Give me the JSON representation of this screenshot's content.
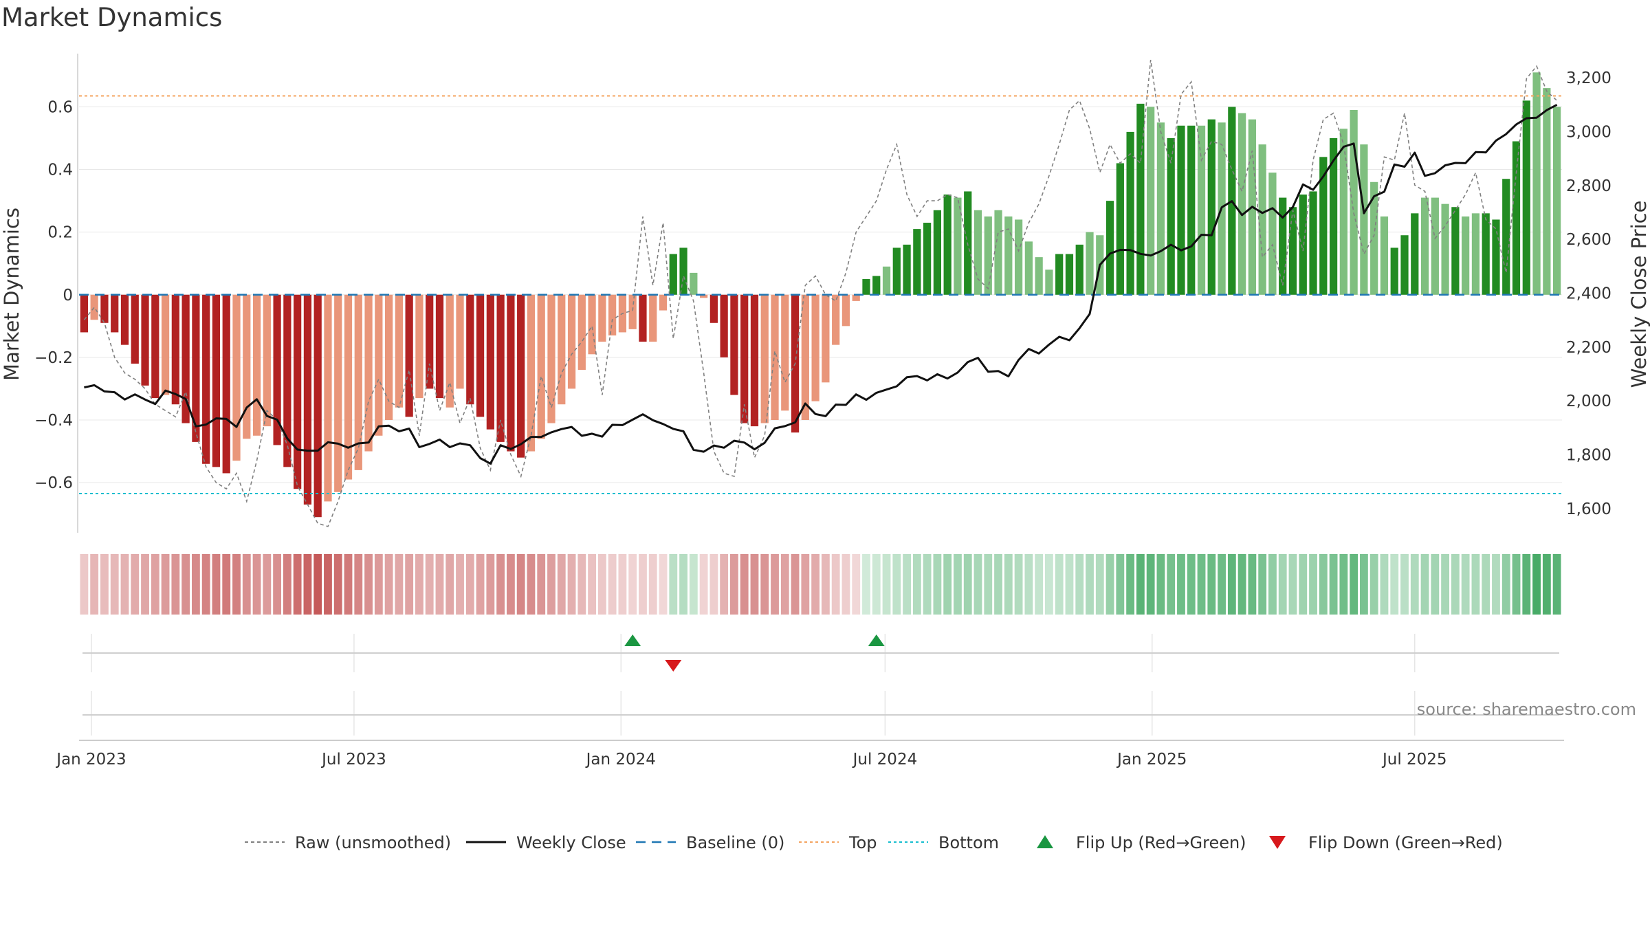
{
  "page": {
    "title": "Market Dynamics"
  },
  "colors": {
    "strong_red": "#b22222",
    "light_red": "#e9967a",
    "strong_green": "#228b22",
    "light_green": "#7fbf7f",
    "close_line": "#111111",
    "raw_line": "#808080",
    "baseline": "#1f77b4",
    "top": "#f4a460",
    "bottom": "#17becf",
    "flip_up": "#1a9641",
    "flip_down": "#d7191c"
  },
  "source": "source: sharemaestro.com",
  "chart_data": {
    "type": "bar",
    "title": "Market Dynamics",
    "ylabel": "Market Dynamics",
    "ylabel_right": "Weekly Close Price",
    "ylim": [
      -0.76,
      0.77
    ],
    "ylim_right": [
      1510,
      3290
    ],
    "yticks": [
      -0.6,
      -0.4,
      -0.2,
      0,
      0.2,
      0.4,
      0.6
    ],
    "ytick_labels": [
      "−0.6",
      "−0.4",
      "−0.2",
      "0",
      "0.2",
      "0.4",
      "0.6"
    ],
    "yticks_right": [
      1600,
      1800,
      2000,
      2200,
      2400,
      2600,
      2800,
      3000,
      3200
    ],
    "ytick_labels_right": [
      "1,600",
      "1,800",
      "2,000",
      "2,200",
      "2,400",
      "2,600",
      "2,800",
      "3,000",
      "3,200"
    ],
    "xtick_labels": [
      "Jan 2023",
      "Jul 2023",
      "Jan 2024",
      "Jul 2024",
      "Jan 2025",
      "Jul 2025"
    ],
    "xtick_dates": [
      "2023-01-01",
      "2023-07-01",
      "2024-01-01",
      "2024-07-01",
      "2025-01-01",
      "2025-07-01"
    ],
    "start_date": "2022-12-27",
    "interval_days": 7,
    "grid": true,
    "legend_position": "bottom-center",
    "top_level": 0.635,
    "bottom_level": -0.635,
    "baseline": 0,
    "bars": [
      -0.12,
      -0.08,
      -0.09,
      -0.12,
      -0.16,
      -0.22,
      -0.29,
      -0.33,
      -0.32,
      -0.35,
      -0.41,
      -0.47,
      -0.54,
      -0.55,
      -0.57,
      -0.53,
      -0.46,
      -0.45,
      -0.42,
      -0.48,
      -0.55,
      -0.62,
      -0.67,
      -0.71,
      -0.66,
      -0.63,
      -0.59,
      -0.56,
      -0.5,
      -0.45,
      -0.4,
      -0.36,
      -0.39,
      -0.33,
      -0.3,
      -0.33,
      -0.36,
      -0.3,
      -0.35,
      -0.39,
      -0.43,
      -0.47,
      -0.5,
      -0.52,
      -0.5,
      -0.46,
      -0.41,
      -0.35,
      -0.3,
      -0.24,
      -0.19,
      -0.15,
      -0.13,
      -0.12,
      -0.11,
      -0.15,
      -0.15,
      -0.05,
      0.13,
      0.15,
      0.07,
      -0.01,
      -0.09,
      -0.2,
      -0.32,
      -0.41,
      -0.42,
      -0.41,
      -0.4,
      -0.37,
      -0.44,
      -0.4,
      -0.34,
      -0.28,
      -0.16,
      -0.1,
      -0.02,
      0.05,
      0.06,
      0.09,
      0.15,
      0.16,
      0.21,
      0.23,
      0.27,
      0.32,
      0.31,
      0.33,
      0.27,
      0.25,
      0.27,
      0.25,
      0.24,
      0.17,
      0.12,
      0.08,
      0.13,
      0.13,
      0.16,
      0.2,
      0.19,
      0.3,
      0.42,
      0.52,
      0.61,
      0.6,
      0.55,
      0.5,
      0.54,
      0.54,
      0.54,
      0.56,
      0.55,
      0.6,
      0.58,
      0.56,
      0.48,
      0.39,
      0.31,
      0.28,
      0.32,
      0.33,
      0.44,
      0.5,
      0.53,
      0.59,
      0.48,
      0.36,
      0.25,
      0.15,
      0.19,
      0.26,
      0.31,
      0.31,
      0.29,
      0.28,
      0.25,
      0.26,
      0.26,
      0.24,
      0.37,
      0.49,
      0.62,
      0.71,
      0.66,
      0.6
    ],
    "bar_strength": [
      "s",
      "l",
      "s",
      "s",
      "s",
      "s",
      "s",
      "s",
      "l",
      "s",
      "s",
      "s",
      "s",
      "s",
      "s",
      "l",
      "l",
      "l",
      "l",
      "s",
      "s",
      "s",
      "s",
      "s",
      "l",
      "l",
      "l",
      "l",
      "l",
      "l",
      "l",
      "l",
      "s",
      "l",
      "s",
      "s",
      "l",
      "l",
      "s",
      "s",
      "s",
      "s",
      "s",
      "s",
      "l",
      "l",
      "l",
      "l",
      "l",
      "l",
      "l",
      "l",
      "l",
      "l",
      "l",
      "s",
      "l",
      "l",
      "s",
      "s",
      "l",
      "l",
      "s",
      "s",
      "s",
      "s",
      "s",
      "l",
      "l",
      "l",
      "s",
      "l",
      "l",
      "l",
      "l",
      "l",
      "l",
      "s",
      "s",
      "l",
      "s",
      "s",
      "s",
      "s",
      "s",
      "s",
      "l",
      "s",
      "l",
      "l",
      "l",
      "l",
      "l",
      "l",
      "l",
      "l",
      "s",
      "s",
      "s",
      "l",
      "l",
      "s",
      "s",
      "s",
      "s",
      "l",
      "l",
      "s",
      "s",
      "s",
      "l",
      "s",
      "l",
      "s",
      "l",
      "l",
      "l",
      "l",
      "s",
      "s",
      "s",
      "s",
      "s",
      "s",
      "l",
      "l",
      "l",
      "l",
      "l",
      "s",
      "s",
      "s",
      "l",
      "l",
      "l",
      "s",
      "l",
      "l",
      "s",
      "s",
      "s",
      "s",
      "s",
      "l"
    ],
    "raw": [
      -0.08,
      -0.04,
      -0.09,
      -0.2,
      -0.25,
      -0.27,
      -0.3,
      -0.35,
      -0.37,
      -0.39,
      -0.31,
      -0.44,
      -0.55,
      -0.6,
      -0.62,
      -0.57,
      -0.66,
      -0.53,
      -0.37,
      -0.4,
      -0.48,
      -0.61,
      -0.67,
      -0.73,
      -0.74,
      -0.66,
      -0.56,
      -0.49,
      -0.34,
      -0.27,
      -0.34,
      -0.36,
      -0.24,
      -0.45,
      -0.22,
      -0.37,
      -0.28,
      -0.41,
      -0.33,
      -0.49,
      -0.56,
      -0.4,
      -0.51,
      -0.58,
      -0.45,
      -0.26,
      -0.36,
      -0.25,
      -0.19,
      -0.15,
      -0.1,
      -0.32,
      -0.08,
      -0.06,
      -0.05,
      0.25,
      0.03,
      0.23,
      -0.14,
      0.06,
      -0.02,
      -0.25,
      -0.5,
      -0.57,
      -0.58,
      -0.35,
      -0.52,
      -0.45,
      -0.18,
      -0.28,
      -0.22,
      0.03,
      0.06,
      0.0,
      -0.02,
      0.07,
      0.2,
      0.25,
      0.3,
      0.4,
      0.48,
      0.32,
      0.25,
      0.3,
      0.3,
      0.32,
      0.31,
      0.16,
      0.05,
      0.02,
      0.2,
      0.21,
      0.14,
      0.23,
      0.29,
      0.38,
      0.48,
      0.59,
      0.62,
      0.53,
      0.39,
      0.48,
      0.42,
      0.45,
      0.42,
      0.75,
      0.52,
      0.42,
      0.64,
      0.68,
      0.43,
      0.49,
      0.48,
      0.4,
      0.33,
      0.46,
      0.12,
      0.16,
      0.03,
      0.27,
      0.14,
      0.43,
      0.56,
      0.58,
      0.48,
      0.26,
      0.13,
      0.19,
      0.44,
      0.43,
      0.58,
      0.35,
      0.33,
      0.18,
      0.22,
      0.27,
      0.32,
      0.39,
      0.24,
      0.21,
      0.07,
      0.39,
      0.69,
      0.73,
      0.65,
      0.62
    ],
    "close": [
      2050,
      2058,
      2035,
      2032,
      2005,
      2024,
      2005,
      1988,
      2038,
      2025,
      2007,
      1905,
      1912,
      1935,
      1933,
      1903,
      1975,
      2006,
      1944,
      1930,
      1860,
      1819,
      1815,
      1815,
      1846,
      1841,
      1826,
      1842,
      1845,
      1905,
      1908,
      1887,
      1897,
      1828,
      1840,
      1856,
      1828,
      1842,
      1835,
      1787,
      1767,
      1835,
      1821,
      1839,
      1866,
      1866,
      1883,
      1895,
      1903,
      1870,
      1878,
      1867,
      1911,
      1910,
      1930,
      1950,
      1928,
      1914,
      1896,
      1887,
      1818,
      1811,
      1834,
      1826,
      1852,
      1845,
      1820,
      1844,
      1898,
      1906,
      1920,
      1990,
      1951,
      1943,
      1986,
      1985,
      2024,
      2004,
      2030,
      2042,
      2054,
      2088,
      2092,
      2076,
      2099,
      2083,
      2105,
      2144,
      2160,
      2108,
      2111,
      2091,
      2152,
      2193,
      2176,
      2209,
      2238,
      2225,
      2270,
      2323,
      2505,
      2547,
      2561,
      2560,
      2546,
      2540,
      2556,
      2580,
      2559,
      2574,
      2617,
      2615,
      2719,
      2742,
      2690,
      2721,
      2698,
      2716,
      2681,
      2720,
      2804,
      2784,
      2834,
      2893,
      2944,
      2956,
      2697,
      2760,
      2777,
      2878,
      2870,
      2922,
      2836,
      2846,
      2875,
      2884,
      2883,
      2924,
      2923,
      2967,
      2991,
      3027,
      3050,
      3052,
      3080,
      3100
    ],
    "heat_intensity": [
      0.25,
      0.33,
      0.3,
      0.32,
      0.35,
      0.38,
      0.4,
      0.42,
      0.45,
      0.48,
      0.5,
      0.53,
      0.56,
      0.58,
      0.6,
      0.57,
      0.5,
      0.48,
      0.45,
      0.5,
      0.58,
      0.65,
      0.7,
      0.75,
      0.7,
      0.65,
      0.6,
      0.55,
      0.5,
      0.46,
      0.42,
      0.4,
      0.42,
      0.38,
      0.36,
      0.38,
      0.4,
      0.36,
      0.38,
      0.42,
      0.45,
      0.5,
      0.52,
      0.55,
      0.52,
      0.48,
      0.44,
      0.4,
      0.36,
      0.32,
      0.28,
      0.25,
      0.23,
      0.22,
      0.2,
      0.22,
      0.22,
      0.18,
      0.3,
      0.32,
      0.25,
      0.2,
      0.22,
      0.35,
      0.45,
      0.5,
      0.5,
      0.48,
      0.46,
      0.42,
      0.48,
      0.42,
      0.38,
      0.32,
      0.25,
      0.22,
      0.18,
      0.2,
      0.22,
      0.25,
      0.28,
      0.3,
      0.34,
      0.35,
      0.38,
      0.42,
      0.4,
      0.42,
      0.38,
      0.36,
      0.38,
      0.36,
      0.34,
      0.3,
      0.26,
      0.24,
      0.28,
      0.28,
      0.32,
      0.35,
      0.34,
      0.45,
      0.55,
      0.65,
      0.72,
      0.7,
      0.65,
      0.6,
      0.63,
      0.63,
      0.63,
      0.65,
      0.64,
      0.7,
      0.68,
      0.66,
      0.58,
      0.48,
      0.4,
      0.38,
      0.42,
      0.43,
      0.52,
      0.58,
      0.62,
      0.68,
      0.58,
      0.45,
      0.35,
      0.28,
      0.3,
      0.35,
      0.4,
      0.4,
      0.38,
      0.37,
      0.35,
      0.36,
      0.36,
      0.34,
      0.48,
      0.6,
      0.72,
      0.8,
      0.76,
      0.72
    ],
    "flip_up": [
      "2024-01-09",
      "2024-06-25"
    ],
    "flip_down": [
      "2024-02-06"
    ],
    "legend": [
      {
        "label": "Raw (unsmoothed)",
        "style": "dashed-gray"
      },
      {
        "label": "Weekly Close",
        "style": "solid-black"
      },
      {
        "label": "Baseline (0)",
        "style": "dashed-blue"
      },
      {
        "label": "Top",
        "style": "dotted-orange"
      },
      {
        "label": "Bottom",
        "style": "dotted-cyan"
      },
      {
        "label": "Flip Up (Red→Green)",
        "style": "triangle-up-green"
      },
      {
        "label": "Flip Down (Green→Red)",
        "style": "triangle-down-red"
      }
    ]
  }
}
